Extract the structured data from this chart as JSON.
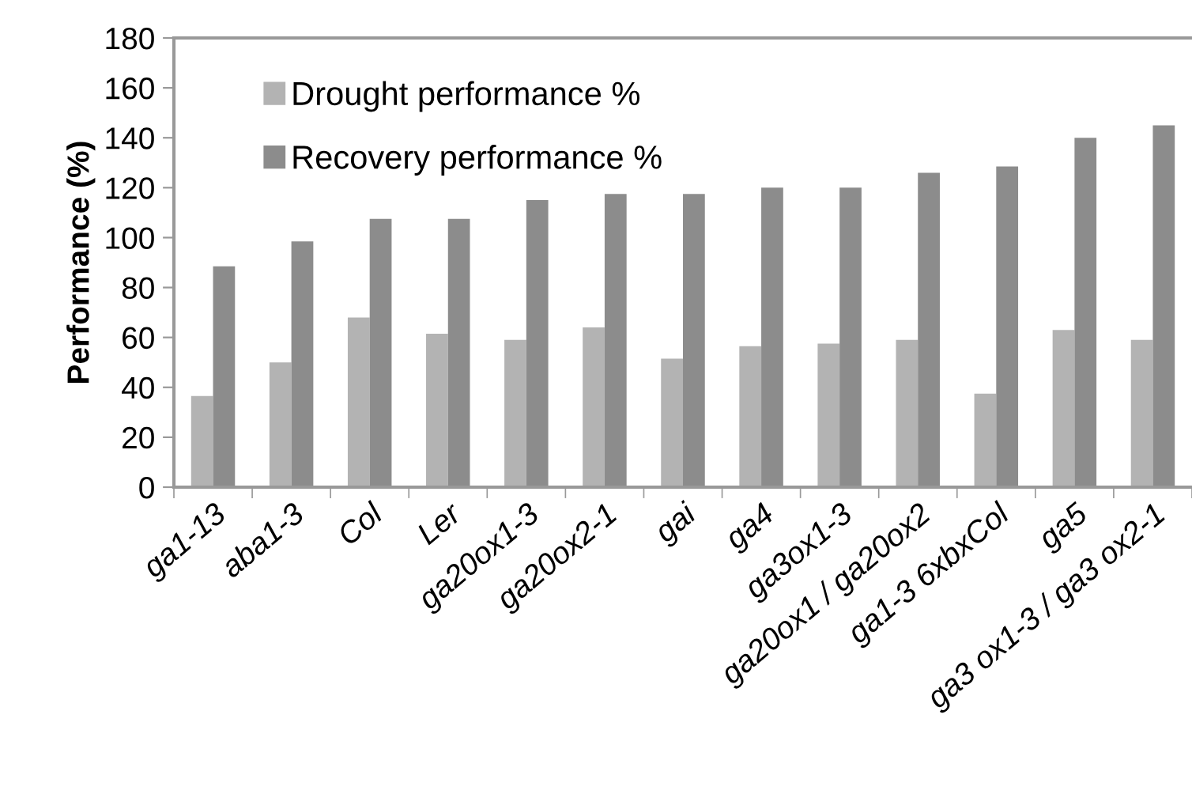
{
  "chart_data": {
    "type": "bar",
    "ylabel": "Performance (%)",
    "categories": [
      "ga1-13",
      "aba1-3",
      "Col",
      "Ler",
      "ga20ox1-3",
      "ga20ox2-1",
      "gai",
      "ga4",
      "ga3ox1-3",
      "ga20ox1 / ga20ox2",
      "ga1-3 6xbxCol",
      "ga5",
      "ga3 ox1-3 / ga3 ox2-1"
    ],
    "series": [
      {
        "name": "Drought performance %",
        "color": "#b3b3b3",
        "values": [
          36.5,
          50,
          68,
          61.5,
          59,
          64,
          51.5,
          56.5,
          57.5,
          59,
          37.5,
          63,
          59
        ]
      },
      {
        "name": "Recovery performance %",
        "color": "#8c8c8c",
        "values": [
          88.5,
          98.5,
          107.5,
          107.5,
          115,
          117.5,
          117.5,
          120,
          120,
          126,
          128.5,
          140,
          145
        ]
      }
    ],
    "ylim": [
      0,
      180
    ],
    "yticks": [
      0,
      20,
      40,
      60,
      80,
      100,
      120,
      140,
      160,
      180
    ],
    "grid": false,
    "legend": "top left"
  }
}
